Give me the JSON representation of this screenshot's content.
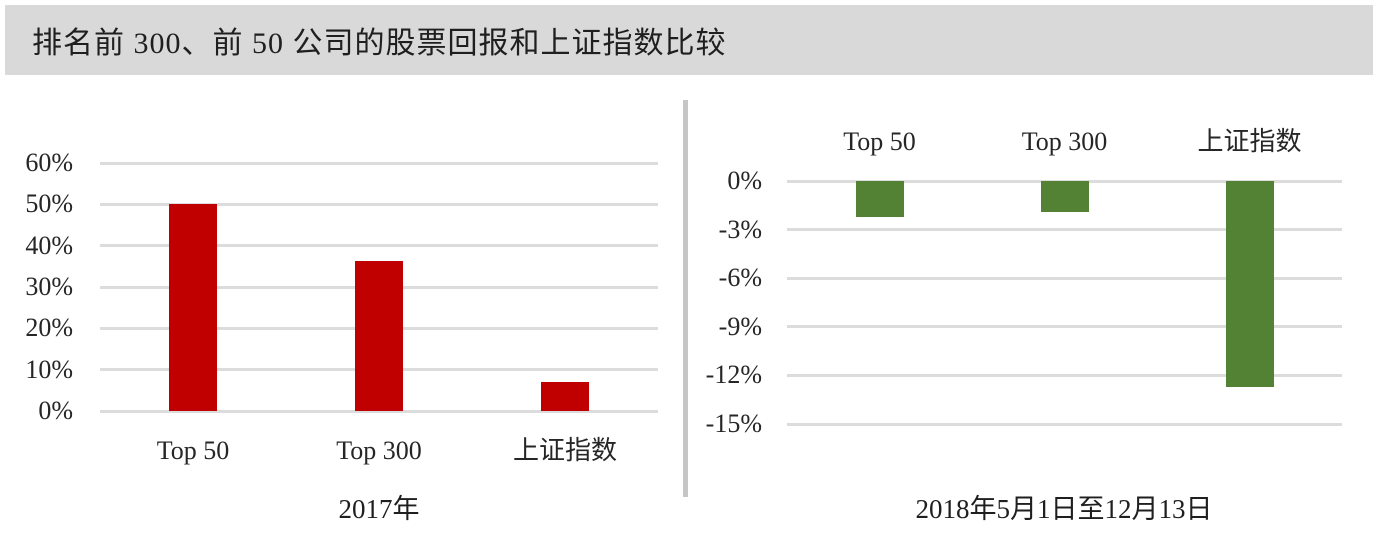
{
  "title": "排名前 300、前 50 公司的股票回报和上证指数比较",
  "colors": {
    "title_bar_bg": "#d9d9d9",
    "bar_red": "#c00000",
    "bar_green": "#548235",
    "gridline": "#dcdcdc",
    "divider": "#c6c6c6",
    "text": "#1f1f1f"
  },
  "chart_data": [
    {
      "type": "bar",
      "title": "",
      "categories": [
        "Top 50",
        "Top 300",
        "上证指数"
      ],
      "values": [
        50.2,
        36.2,
        6.9
      ],
      "xlabel": "2017年",
      "ylabel": "",
      "ylim": [
        0,
        60
      ],
      "yticks": [
        0,
        10,
        20,
        30,
        40,
        50,
        60
      ],
      "ytick_labels": [
        "0%",
        "10%",
        "20%",
        "30%",
        "40%",
        "50%",
        "60%"
      ],
      "bar_color": "#c00000",
      "category_labels_position": "below-axis",
      "grid": true,
      "legend": false
    },
    {
      "type": "bar",
      "title": "",
      "categories": [
        "Top 50",
        "Top 300",
        "上证指数"
      ],
      "values": [
        -2.2,
        -1.9,
        -12.7
      ],
      "xlabel": "2018年5月1日至12月13日",
      "ylabel": "",
      "ylim": [
        -15,
        0
      ],
      "yticks": [
        0,
        -3,
        -6,
        -9,
        -12,
        -15
      ],
      "ytick_labels": [
        "0%",
        "-3%",
        "-6%",
        "-9%",
        "-12%",
        "-15%"
      ],
      "bar_color": "#548235",
      "category_labels_position": "above-chart",
      "grid": true,
      "legend": false
    }
  ]
}
